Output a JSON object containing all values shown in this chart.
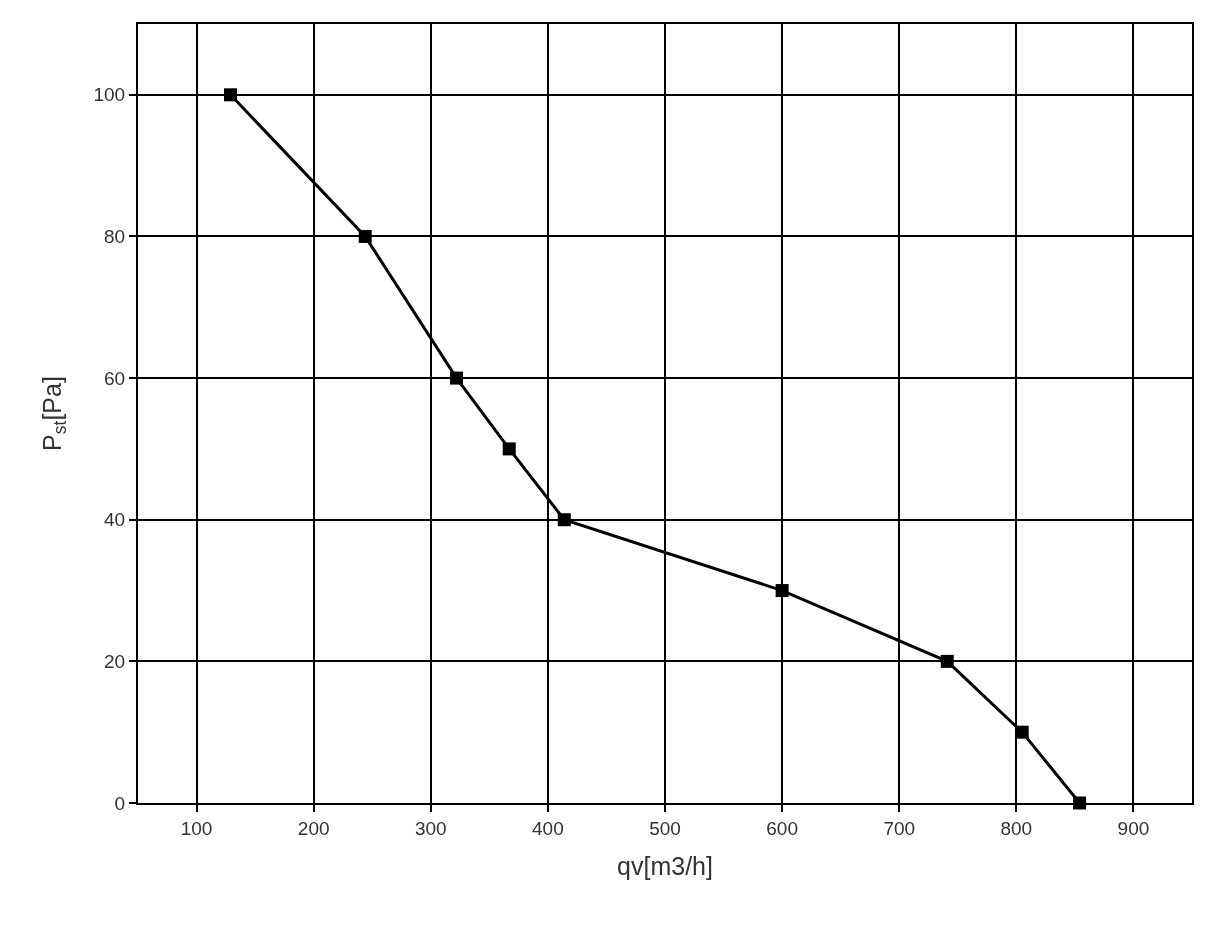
{
  "chart_data": {
    "type": "line",
    "xlabel": "qv[m3/h]",
    "ylabel": "P$_{st}$[Pa]",
    "x": [
      129,
      244,
      322,
      367,
      414,
      600,
      741,
      805,
      854
    ],
    "series": [
      {
        "color": "#000000",
        "values": [
          100,
          80,
          60,
          50,
          40,
          30,
          20,
          10,
          0
        ]
      }
    ],
    "xlim": [
      50,
      950
    ],
    "xticks": [
      100,
      200,
      300,
      400,
      500,
      600,
      700,
      800,
      900
    ],
    "ylim": [
      0,
      110
    ],
    "yticks": [
      0,
      20,
      40,
      60,
      80,
      100
    ],
    "grid": true,
    "marker": "square",
    "line_style": "solid"
  }
}
